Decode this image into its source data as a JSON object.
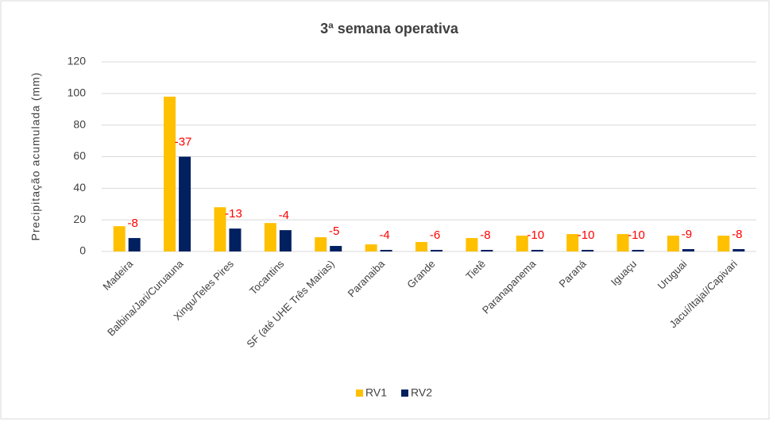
{
  "chart_data": {
    "type": "bar",
    "title": "3ª semana operativa",
    "y_label": "Precipitação acumulada (mm)",
    "categories": [
      "Madeira",
      "Balbina/Jari/Curuauna",
      "Xingu/Teles Pires",
      "Tocantins",
      "SF (até UHE Três Marias)",
      "Paranaiba",
      "Grande",
      "Tietê",
      "Paranapanema",
      "Paraná",
      "Iguaçu",
      "Uruguai",
      "Jacuí/Itajaí/Capivari"
    ],
    "series": [
      {
        "name": "RV1",
        "color": "#ffc000",
        "values": [
          16,
          98,
          28,
          18,
          9,
          4.5,
          6,
          8.5,
          10,
          11,
          11,
          10,
          10
        ]
      },
      {
        "name": "RV2",
        "color": "#002060",
        "values": [
          8.5,
          60,
          14.5,
          13.5,
          3.5,
          1,
          1,
          1,
          1,
          1,
          1,
          1.5,
          1.5
        ]
      }
    ],
    "annotations": [
      -8,
      -37,
      -13,
      -4,
      -5,
      -4,
      -6,
      -8,
      -10,
      -10,
      -10,
      -9,
      -8
    ],
    "annotation_color": "#ff0000",
    "ylim": [
      0,
      120
    ],
    "yticks": [
      0,
      20,
      40,
      60,
      80,
      100,
      120
    ],
    "grid": true,
    "legend": "bottom"
  }
}
